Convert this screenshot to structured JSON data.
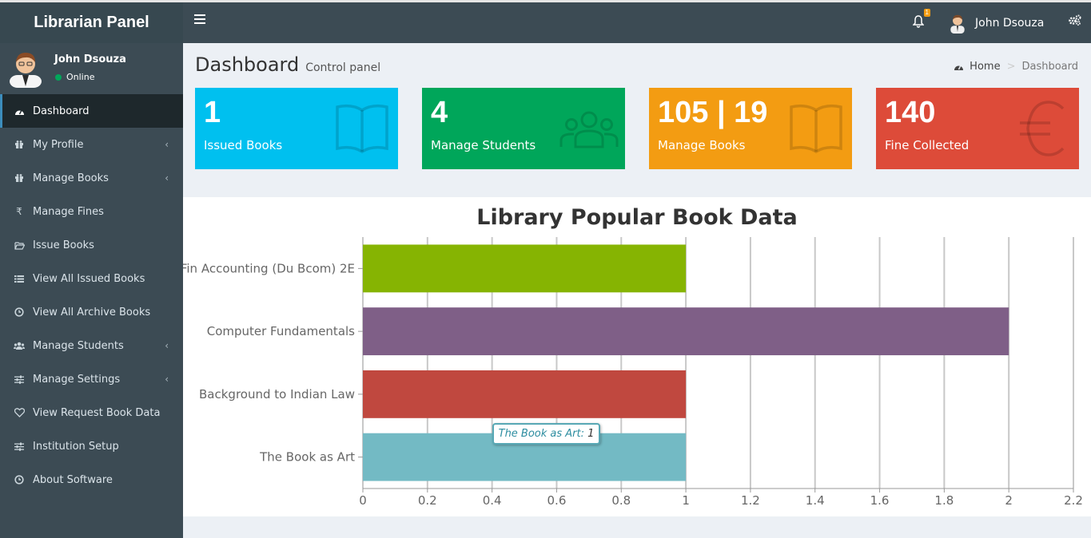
{
  "brand": {
    "title": "Librarian Panel"
  },
  "navbar": {
    "notification_count": "1",
    "user_name": "John Dsouza"
  },
  "sidebar": {
    "user": {
      "name": "John Dsouza",
      "status": "Online"
    },
    "items": [
      {
        "label": "Dashboard",
        "icon": "dashboard-icon",
        "active": true,
        "has_children": false
      },
      {
        "label": "My Profile",
        "icon": "gift-icon",
        "has_children": true
      },
      {
        "label": "Manage Books",
        "icon": "gift-icon",
        "has_children": true
      },
      {
        "label": "Manage Fines",
        "icon": "rupee-icon",
        "has_children": false
      },
      {
        "label": "Issue Books",
        "icon": "folder-open-icon",
        "has_children": false
      },
      {
        "label": "View All Issued Books",
        "icon": "list-icon",
        "has_children": false
      },
      {
        "label": "View All Archive Books",
        "icon": "clock-icon",
        "has_children": false
      },
      {
        "label": "Manage Students",
        "icon": "users-icon",
        "has_children": true
      },
      {
        "label": "Manage Settings",
        "icon": "sliders-icon",
        "has_children": true
      },
      {
        "label": "View Request Book Data",
        "icon": "heart-icon",
        "has_children": false
      },
      {
        "label": "Institution Setup",
        "icon": "sliders-icon",
        "has_children": false
      },
      {
        "label": "About Software",
        "icon": "clock-icon",
        "has_children": false
      }
    ]
  },
  "header": {
    "title": "Dashboard",
    "subtitle": "Control panel"
  },
  "breadcrumb": {
    "home": "Home",
    "current": "Dashboard"
  },
  "stats": [
    {
      "value": "1",
      "label": "Issued Books",
      "icon": "book-icon",
      "color": "#00c0ef"
    },
    {
      "value": "4",
      "label": "Manage Students",
      "icon": "users-icon",
      "color": "#00a65a"
    },
    {
      "value": "105 | 19",
      "label": "Manage Books",
      "icon": "book-icon",
      "color": "#f39c12"
    },
    {
      "value": "140",
      "label": "Fine Collected",
      "icon": "euro-icon",
      "color": "#dd4b39"
    }
  ],
  "chart_data": {
    "type": "bar",
    "orientation": "horizontal",
    "title": "Library Popular Book Data",
    "categories": [
      "Fin Accounting (Du Bcom) 2E",
      "Computer Fundamentals",
      "Background to Indian Law",
      "The Book as Art"
    ],
    "values": [
      1,
      2,
      1,
      1
    ],
    "colors": [
      "#86b402",
      "#7f5f87",
      "#c0483f",
      "#73bac4"
    ],
    "xlim": [
      0,
      2.2
    ],
    "xticks": [
      "0",
      "0.2",
      "0.4",
      "0.6",
      "0.8",
      "1",
      "1.2",
      "1.4",
      "1.6",
      "1.8",
      "2",
      "2.2"
    ],
    "grid": true,
    "tooltip": {
      "label": "The Book as Art:",
      "value": "1"
    }
  }
}
